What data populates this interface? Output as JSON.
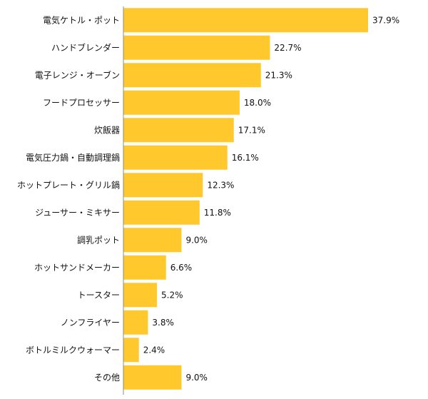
{
  "colors": {
    "bar": "#FFC82C",
    "axis": "#8c8c8c",
    "text": "#111111",
    "background": "#ffffff"
  },
  "chart_data": {
    "type": "bar",
    "orientation": "horizontal",
    "title": "",
    "xlabel": "",
    "ylabel": "",
    "grid": false,
    "legend": "none",
    "xlim": [
      0,
      40
    ],
    "value_suffix": "%",
    "categories": [
      "電気ケトル・ポット",
      "ハンドブレンダー",
      "電子レンジ・オーブン",
      "フードプロセッサー",
      "炊飯器",
      "電気圧力鍋・自動調理鍋",
      "ホットプレート・グリル鍋",
      "ジューサー・ミキサー",
      "調乳ポット",
      "ホットサンドメーカー",
      "トースター",
      "ノンフライヤー",
      "ボトルミルクウォーマー",
      "その他"
    ],
    "values": [
      37.9,
      22.7,
      21.3,
      18.0,
      17.1,
      16.1,
      12.3,
      11.8,
      9.0,
      6.6,
      5.2,
      3.8,
      2.4,
      9.0
    ],
    "value_labels": [
      "37.9%",
      "22.7%",
      "21.3%",
      "18.0%",
      "17.1%",
      "16.1%",
      "12.3%",
      "11.8%",
      "9.0%",
      "6.6%",
      "5.2%",
      "3.8%",
      "2.4%",
      "9.0%"
    ]
  }
}
